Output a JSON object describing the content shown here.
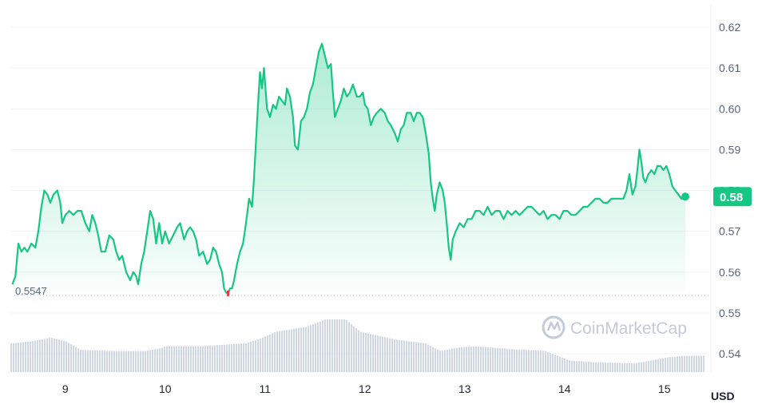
{
  "chart_data": {
    "type": "area",
    "x_ticks": [
      "9",
      "10",
      "11",
      "12",
      "13",
      "14",
      "15"
    ],
    "x_range": [
      8.45,
      15.45
    ],
    "y_ticks": [
      "0.54",
      "0.55",
      "0.56",
      "0.57",
      "0.58",
      "0.59",
      "0.60",
      "0.61",
      "0.62"
    ],
    "ylim": [
      0.5355,
      0.6255
    ],
    "currency_label": "USD",
    "current_price_label": "0.58",
    "current_price": 0.5785,
    "low_reference_label": "0.5547",
    "low_reference": 0.5547,
    "watermark": "CoinMarketCap",
    "grid": true,
    "colors": {
      "line": "#16c784",
      "fill_top": "#16c784",
      "badge": "#16c784",
      "low_marker": "#ea3943",
      "volume": "#cfd6e4",
      "grid": "#eff2f5",
      "axis_text": "#58667e",
      "watermark": "#c3cad8"
    },
    "series": [
      {
        "values": [
          [
            8.47,
            0.557
          ],
          [
            8.5,
            0.559
          ],
          [
            8.53,
            0.567
          ],
          [
            8.56,
            0.565
          ],
          [
            8.59,
            0.566
          ],
          [
            8.62,
            0.565
          ],
          [
            8.66,
            0.567
          ],
          [
            8.7,
            0.566
          ],
          [
            8.73,
            0.57
          ],
          [
            8.76,
            0.576
          ],
          [
            8.79,
            0.58
          ],
          [
            8.82,
            0.579
          ],
          [
            8.85,
            0.577
          ],
          [
            8.88,
            0.579
          ],
          [
            8.92,
            0.58
          ],
          [
            8.95,
            0.577
          ],
          [
            8.97,
            0.572
          ],
          [
            9.0,
            0.574
          ],
          [
            9.04,
            0.575
          ],
          [
            9.08,
            0.574
          ],
          [
            9.12,
            0.575
          ],
          [
            9.16,
            0.575
          ],
          [
            9.2,
            0.572
          ],
          [
            9.24,
            0.57
          ],
          [
            9.27,
            0.574
          ],
          [
            9.3,
            0.572
          ],
          [
            9.33,
            0.569
          ],
          [
            9.36,
            0.565
          ],
          [
            9.4,
            0.565
          ],
          [
            9.44,
            0.569
          ],
          [
            9.48,
            0.568
          ],
          [
            9.51,
            0.565
          ],
          [
            9.54,
            0.563
          ],
          [
            9.57,
            0.564
          ],
          [
            9.61,
            0.56
          ],
          [
            9.65,
            0.558
          ],
          [
            9.68,
            0.56
          ],
          [
            9.71,
            0.559
          ],
          [
            9.73,
            0.557
          ],
          [
            9.76,
            0.562
          ],
          [
            9.79,
            0.565
          ],
          [
            9.82,
            0.57
          ],
          [
            9.85,
            0.575
          ],
          [
            9.88,
            0.573
          ],
          [
            9.91,
            0.567
          ],
          [
            9.94,
            0.572
          ],
          [
            9.97,
            0.567
          ],
          [
            10.0,
            0.57
          ],
          [
            10.04,
            0.567
          ],
          [
            10.08,
            0.569
          ],
          [
            10.12,
            0.571
          ],
          [
            10.15,
            0.572
          ],
          [
            10.19,
            0.568
          ],
          [
            10.22,
            0.57
          ],
          [
            10.25,
            0.571
          ],
          [
            10.28,
            0.57
          ],
          [
            10.31,
            0.568
          ],
          [
            10.34,
            0.564
          ],
          [
            10.38,
            0.565
          ],
          [
            10.42,
            0.562
          ],
          [
            10.45,
            0.563
          ],
          [
            10.48,
            0.566
          ],
          [
            10.51,
            0.565
          ],
          [
            10.54,
            0.562
          ],
          [
            10.57,
            0.56
          ],
          [
            10.59,
            0.556
          ],
          [
            10.61,
            0.555
          ],
          [
            10.63,
            0.5547
          ],
          [
            10.65,
            0.556
          ],
          [
            10.67,
            0.556
          ],
          [
            10.69,
            0.558
          ],
          [
            10.72,
            0.562
          ],
          [
            10.75,
            0.565
          ],
          [
            10.78,
            0.567
          ],
          [
            10.81,
            0.572
          ],
          [
            10.84,
            0.578
          ],
          [
            10.87,
            0.576
          ],
          [
            10.89,
            0.583
          ],
          [
            10.91,
            0.592
          ],
          [
            10.93,
            0.601
          ],
          [
            10.95,
            0.609
          ],
          [
            10.97,
            0.605
          ],
          [
            10.99,
            0.61
          ],
          [
            11.02,
            0.6
          ],
          [
            11.05,
            0.598
          ],
          [
            11.08,
            0.601
          ],
          [
            11.11,
            0.6
          ],
          [
            11.14,
            0.603
          ],
          [
            11.17,
            0.602
          ],
          [
            11.2,
            0.601
          ],
          [
            11.22,
            0.605
          ],
          [
            11.25,
            0.603
          ],
          [
            11.28,
            0.598
          ],
          [
            11.3,
            0.591
          ],
          [
            11.33,
            0.59
          ],
          [
            11.36,
            0.597
          ],
          [
            11.39,
            0.598
          ],
          [
            11.42,
            0.6
          ],
          [
            11.45,
            0.604
          ],
          [
            11.48,
            0.606
          ],
          [
            11.51,
            0.61
          ],
          [
            11.54,
            0.614
          ],
          [
            11.57,
            0.616
          ],
          [
            11.6,
            0.613
          ],
          [
            11.63,
            0.61
          ],
          [
            11.66,
            0.611
          ],
          [
            11.68,
            0.604
          ],
          [
            11.7,
            0.598
          ],
          [
            11.73,
            0.6
          ],
          [
            11.76,
            0.602
          ],
          [
            11.79,
            0.605
          ],
          [
            11.82,
            0.603
          ],
          [
            11.85,
            0.604
          ],
          [
            11.88,
            0.606
          ],
          [
            11.92,
            0.603
          ],
          [
            11.95,
            0.603
          ],
          [
            11.98,
            0.604
          ],
          [
            12.0,
            0.601
          ],
          [
            12.03,
            0.6
          ],
          [
            12.06,
            0.596
          ],
          [
            12.09,
            0.598
          ],
          [
            12.12,
            0.599
          ],
          [
            12.16,
            0.6
          ],
          [
            12.2,
            0.599
          ],
          [
            12.23,
            0.597
          ],
          [
            12.26,
            0.596
          ],
          [
            12.3,
            0.594
          ],
          [
            12.33,
            0.592
          ],
          [
            12.36,
            0.595
          ],
          [
            12.39,
            0.596
          ],
          [
            12.42,
            0.599
          ],
          [
            12.46,
            0.599
          ],
          [
            12.49,
            0.597
          ],
          [
            12.52,
            0.599
          ],
          [
            12.55,
            0.599
          ],
          [
            12.58,
            0.598
          ],
          [
            12.61,
            0.594
          ],
          [
            12.64,
            0.589
          ],
          [
            12.66,
            0.582
          ],
          [
            12.68,
            0.578
          ],
          [
            12.7,
            0.575
          ],
          [
            12.72,
            0.579
          ],
          [
            12.75,
            0.582
          ],
          [
            12.78,
            0.58
          ],
          [
            12.8,
            0.577
          ],
          [
            12.82,
            0.572
          ],
          [
            12.84,
            0.566
          ],
          [
            12.86,
            0.563
          ],
          [
            12.88,
            0.568
          ],
          [
            12.91,
            0.57
          ],
          [
            12.95,
            0.572
          ],
          [
            12.99,
            0.571
          ],
          [
            13.03,
            0.573
          ],
          [
            13.07,
            0.573
          ],
          [
            13.11,
            0.575
          ],
          [
            13.15,
            0.575
          ],
          [
            13.19,
            0.574
          ],
          [
            13.23,
            0.576
          ],
          [
            13.27,
            0.574
          ],
          [
            13.31,
            0.575
          ],
          [
            13.35,
            0.575
          ],
          [
            13.39,
            0.573
          ],
          [
            13.43,
            0.575
          ],
          [
            13.47,
            0.574
          ],
          [
            13.51,
            0.575
          ],
          [
            13.55,
            0.574
          ],
          [
            13.59,
            0.575
          ],
          [
            13.63,
            0.576
          ],
          [
            13.67,
            0.576
          ],
          [
            13.71,
            0.575
          ],
          [
            13.75,
            0.574
          ],
          [
            13.79,
            0.575
          ],
          [
            13.83,
            0.573
          ],
          [
            13.87,
            0.574
          ],
          [
            13.91,
            0.574
          ],
          [
            13.95,
            0.573
          ],
          [
            13.99,
            0.575
          ],
          [
            14.03,
            0.575
          ],
          [
            14.07,
            0.574
          ],
          [
            14.11,
            0.574
          ],
          [
            14.15,
            0.575
          ],
          [
            14.19,
            0.576
          ],
          [
            14.23,
            0.576
          ],
          [
            14.27,
            0.577
          ],
          [
            14.31,
            0.578
          ],
          [
            14.35,
            0.578
          ],
          [
            14.39,
            0.577
          ],
          [
            14.43,
            0.577
          ],
          [
            14.47,
            0.578
          ],
          [
            14.51,
            0.578
          ],
          [
            14.55,
            0.578
          ],
          [
            14.59,
            0.578
          ],
          [
            14.62,
            0.58
          ],
          [
            14.65,
            0.584
          ],
          [
            14.68,
            0.579
          ],
          [
            14.71,
            0.581
          ],
          [
            14.73,
            0.585
          ],
          [
            14.75,
            0.59
          ],
          [
            14.77,
            0.587
          ],
          [
            14.79,
            0.583
          ],
          [
            14.81,
            0.582
          ],
          [
            14.84,
            0.584
          ],
          [
            14.87,
            0.585
          ],
          [
            14.9,
            0.584
          ],
          [
            14.93,
            0.586
          ],
          [
            14.96,
            0.586
          ],
          [
            14.99,
            0.585
          ],
          [
            15.02,
            0.586
          ],
          [
            15.05,
            0.584
          ],
          [
            15.08,
            0.581
          ],
          [
            15.11,
            0.58
          ],
          [
            15.14,
            0.579
          ],
          [
            15.17,
            0.578
          ],
          [
            15.19,
            0.578
          ],
          [
            15.21,
            0.5785
          ]
        ]
      }
    ],
    "volume_note": "relative volume profile",
    "volume": [
      [
        8.45,
        0.3
      ],
      [
        8.65,
        0.32
      ],
      [
        8.85,
        0.36
      ],
      [
        9.0,
        0.32
      ],
      [
        9.15,
        0.23
      ],
      [
        9.5,
        0.22
      ],
      [
        9.8,
        0.22
      ],
      [
        9.95,
        0.25
      ],
      [
        10.0,
        0.27
      ],
      [
        10.35,
        0.27
      ],
      [
        10.65,
        0.29
      ],
      [
        10.8,
        0.3
      ],
      [
        10.95,
        0.35
      ],
      [
        11.1,
        0.42
      ],
      [
        11.4,
        0.47
      ],
      [
        11.6,
        0.55
      ],
      [
        11.8,
        0.55
      ],
      [
        11.95,
        0.42
      ],
      [
        12.3,
        0.34
      ],
      [
        12.6,
        0.3
      ],
      [
        12.75,
        0.22
      ],
      [
        12.95,
        0.26
      ],
      [
        13.1,
        0.27
      ],
      [
        13.45,
        0.24
      ],
      [
        13.8,
        0.22
      ],
      [
        14.05,
        0.12
      ],
      [
        14.35,
        0.1
      ],
      [
        14.7,
        0.09
      ],
      [
        15.0,
        0.15
      ],
      [
        15.2,
        0.17
      ],
      [
        15.45,
        0.17
      ]
    ]
  }
}
